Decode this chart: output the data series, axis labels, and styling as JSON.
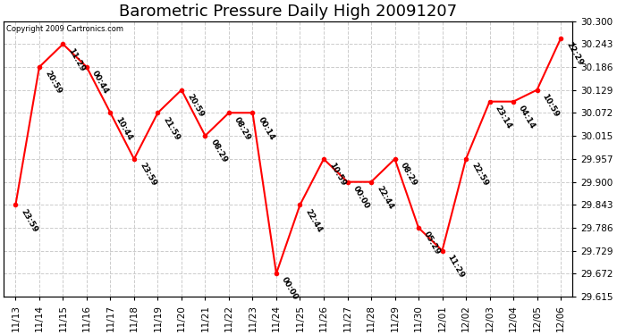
{
  "title": "Barometric Pressure Daily High 20091207",
  "copyright_text": "Copyright 2009 Cartronics.com",
  "x_labels": [
    "11/13",
    "11/14",
    "11/15",
    "11/16",
    "11/17",
    "11/18",
    "11/19",
    "11/20",
    "11/21",
    "11/22",
    "11/23",
    "11/24",
    "11/25",
    "11/26",
    "11/27",
    "11/28",
    "11/29",
    "11/30",
    "12/01",
    "12/02",
    "12/03",
    "12/04",
    "12/05",
    "12/06"
  ],
  "y_values": [
    29.843,
    30.186,
    30.243,
    30.186,
    30.072,
    29.957,
    30.072,
    30.129,
    30.015,
    30.072,
    30.072,
    29.672,
    29.843,
    29.957,
    29.9,
    29.9,
    29.957,
    29.786,
    29.729,
    29.957,
    30.1,
    30.1,
    30.129,
    30.257
  ],
  "annotations": [
    "23:59",
    "20:59",
    "11:29",
    "00:44",
    "10:44",
    "23:59",
    "21:59",
    "20:59",
    "08:29",
    "08:29",
    "00:14",
    "00:00",
    "22:44",
    "10:59",
    "00:00",
    "22:44",
    "08:29",
    "05:29",
    "11:29",
    "22:59",
    "23:14",
    "04:14",
    "10:59",
    "22:29"
  ],
  "ylim_min": 29.615,
  "ylim_max": 30.3,
  "yticks": [
    29.615,
    29.672,
    29.729,
    29.786,
    29.843,
    29.9,
    29.957,
    30.015,
    30.072,
    30.129,
    30.186,
    30.243,
    30.3
  ],
  "line_color": "red",
  "marker_color": "red",
  "marker_size": 3,
  "grid_color": "#cccccc",
  "bg_color": "white",
  "title_fontsize": 13,
  "annotation_fontsize": 6.5,
  "xlabel_fontsize": 7.5,
  "ylabel_fontsize": 7.5
}
